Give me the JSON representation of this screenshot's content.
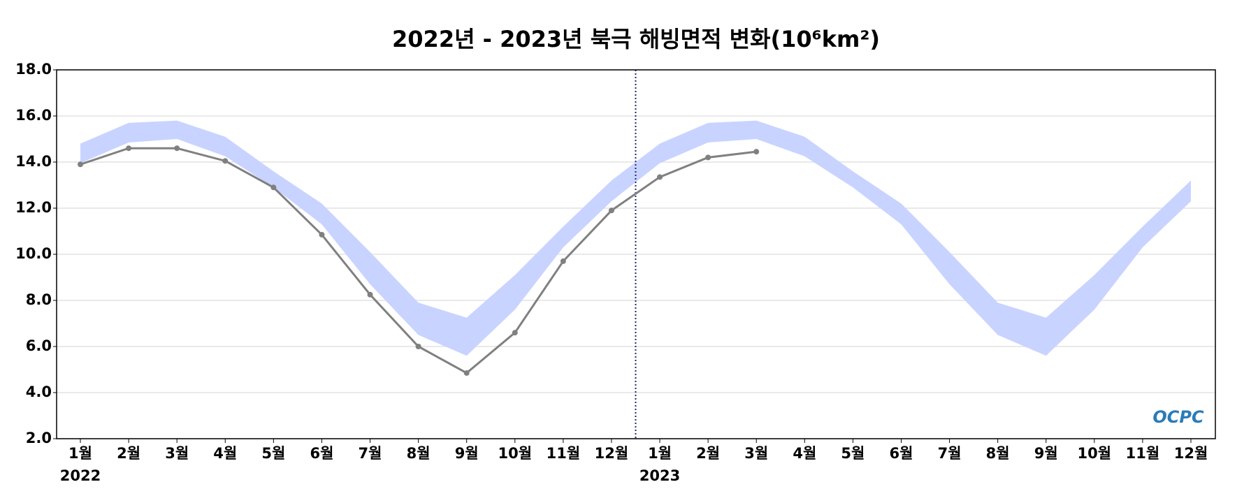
{
  "chart_data": {
    "type": "line",
    "title": "2022년 - 2023년 북극 해빙면적 변화(10⁶km²)",
    "categories": [
      "1월",
      "2월",
      "3월",
      "4월",
      "5월",
      "6월",
      "7월",
      "8월",
      "9월",
      "10월",
      "11월",
      "12월",
      "1월",
      "2월",
      "3월",
      "4월",
      "5월",
      "6월",
      "7월",
      "8월",
      "9월",
      "10월",
      "11월",
      "12월"
    ],
    "year_labels": [
      "2022",
      "2023"
    ],
    "series": [
      {
        "color": "#808080",
        "values": [
          13.9,
          14.6,
          14.6,
          14.05,
          12.9,
          10.85,
          8.25,
          6.0,
          4.85,
          6.6,
          9.7,
          11.9,
          13.35,
          14.2,
          14.45,
          null,
          null,
          null,
          null,
          null,
          null,
          null,
          null,
          null
        ]
      }
    ],
    "band": {
      "color": "#c8d4ff",
      "upper": [
        14.8,
        15.7,
        15.8,
        15.1,
        13.6,
        12.2,
        10.1,
        7.9,
        7.25,
        9.1,
        11.2,
        13.2,
        14.8,
        15.7,
        15.8,
        15.1,
        13.6,
        12.2,
        10.1,
        7.9,
        7.25,
        9.1,
        11.2,
        13.2
      ],
      "lower": [
        13.95,
        14.85,
        15.0,
        14.25,
        12.9,
        11.3,
        8.7,
        6.5,
        5.6,
        7.6,
        10.3,
        12.3,
        13.95,
        14.85,
        15.0,
        14.25,
        12.9,
        11.3,
        8.7,
        6.5,
        5.6,
        7.6,
        10.3,
        12.3
      ]
    },
    "ylim": [
      2,
      18
    ],
    "yticks": [
      {
        "value": 2,
        "label": "2.0"
      },
      {
        "value": 4,
        "label": "4.0"
      },
      {
        "value": 6,
        "label": "6.0"
      },
      {
        "value": 8,
        "label": "8.0"
      },
      {
        "value": 10,
        "label": "10.0"
      },
      {
        "value": 12,
        "label": "12.0"
      },
      {
        "value": 14,
        "label": "14.0"
      },
      {
        "value": 16,
        "label": "16.0"
      },
      {
        "value": 18,
        "label": "18.0"
      }
    ],
    "grid": true,
    "watermark": "OCPC"
  }
}
